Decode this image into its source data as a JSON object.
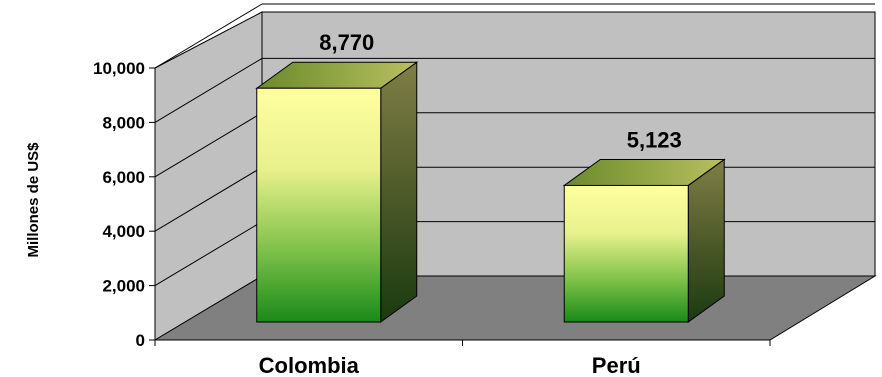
{
  "chart_data": {
    "type": "bar",
    "style": "3d-column",
    "categories": [
      "Colombia",
      "Perú"
    ],
    "values": [
      8770,
      5123
    ],
    "value_labels": [
      "8,770",
      "5,123"
    ],
    "ylabel": "Millones de US$",
    "ylim": [
      0,
      10000
    ],
    "yticks": [
      0,
      2000,
      4000,
      6000,
      8000,
      10000
    ],
    "ytick_labels": [
      "0",
      "2,000",
      "4,000",
      "6,000",
      "8,000",
      "10,000"
    ],
    "grid": true,
    "legend": "none",
    "colors": {
      "wall": "#c0c0c0",
      "floor": "#808080",
      "bar_top": "#ffff99",
      "bar_bottom": "#1a8a1a",
      "bar_side_top": "#7a7a3e",
      "bar_side_bottom": "#1a3a10",
      "gridline": "#000000"
    }
  }
}
